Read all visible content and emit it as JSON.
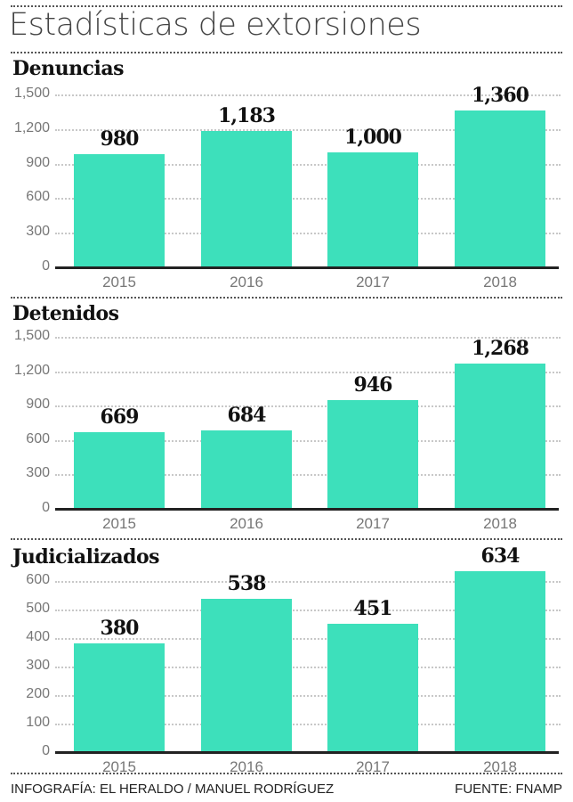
{
  "title": "Estadísticas de extorsiones",
  "footer": {
    "credit": "INFOGRAFÍA: EL HERALDO / MANUEL RODRÍGUEZ",
    "source": "FUENTE: FNAMP"
  },
  "colors": {
    "bar": "#3de0bb",
    "text": "#111111",
    "axis": "#222222"
  },
  "chart_data": [
    {
      "type": "bar",
      "title": "Denuncias",
      "categories": [
        "2015",
        "2016",
        "2017",
        "2018"
      ],
      "values": [
        980,
        1183,
        1000,
        1360
      ],
      "value_labels": [
        "980",
        "1,183",
        "1,000",
        "1,360"
      ],
      "yticks": [
        "0",
        "300",
        "600",
        "900",
        "1,200",
        "1,500"
      ],
      "ylim": [
        0,
        1500
      ],
      "xlabel": "",
      "ylabel": "",
      "grid": true
    },
    {
      "type": "bar",
      "title": "Detenidos",
      "categories": [
        "2015",
        "2016",
        "2017",
        "2018"
      ],
      "values": [
        669,
        684,
        946,
        1268
      ],
      "value_labels": [
        "669",
        "684",
        "946",
        "1,268"
      ],
      "yticks": [
        "0",
        "300",
        "600",
        "900",
        "1,200",
        "1,500"
      ],
      "ylim": [
        0,
        1500
      ],
      "xlabel": "",
      "ylabel": "",
      "grid": true
    },
    {
      "type": "bar",
      "title": "Judicializados",
      "categories": [
        "2015",
        "2016",
        "2017",
        "2018"
      ],
      "values": [
        380,
        538,
        451,
        634
      ],
      "value_labels": [
        "380",
        "538",
        "451",
        "634"
      ],
      "yticks": [
        "0",
        "100",
        "200",
        "300",
        "400",
        "500",
        "600"
      ],
      "ylim": [
        0,
        600
      ],
      "xlabel": "",
      "ylabel": "",
      "grid": true
    }
  ]
}
